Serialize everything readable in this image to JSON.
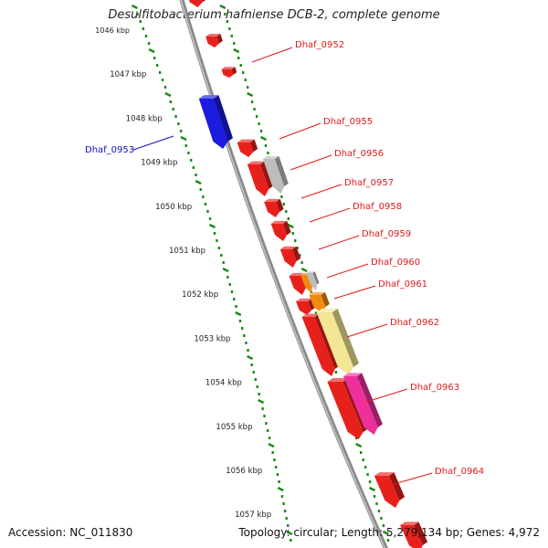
{
  "title": "Desulfitobacterium hafniense DCB-2, complete genome",
  "footer": {
    "accession": "Accession: NC_011830",
    "topology": "Topology: circular; Length: 5,279,134 bp; Genes: 4,972"
  },
  "scale_labels": [
    "1046 kbp",
    "1047 kbp",
    "1048 kbp",
    "1049 kbp",
    "1050 kbp",
    "1051 kbp",
    "1052 kbp",
    "1053 kbp",
    "1054 kbp",
    "1055 kbp",
    "1056 kbp",
    "1057 kbp"
  ],
  "colors": {
    "forward_gene": "#e8201c",
    "reverse_gene": "#1c1ce0",
    "orange_gene": "#f08a10",
    "grey_gene": "#bdbdbd",
    "yellow_gene": "#f3e694",
    "magenta_gene": "#ef2f9c",
    "backbone": "#8a8a8a",
    "scale_ticks": "#1a8a1a",
    "forward_label": "#e01818",
    "reverse_label": "#1010c8"
  },
  "gene_labels": [
    {
      "id": "Dhaf_0952",
      "strand": "forward"
    },
    {
      "id": "Dhaf_0953",
      "strand": "reverse"
    },
    {
      "id": "Dhaf_0955",
      "strand": "forward"
    },
    {
      "id": "Dhaf_0956",
      "strand": "forward"
    },
    {
      "id": "Dhaf_0957",
      "strand": "forward"
    },
    {
      "id": "Dhaf_0958",
      "strand": "forward"
    },
    {
      "id": "Dhaf_0959",
      "strand": "forward"
    },
    {
      "id": "Dhaf_0960",
      "strand": "forward"
    },
    {
      "id": "Dhaf_0961",
      "strand": "forward"
    },
    {
      "id": "Dhaf_0962",
      "strand": "forward"
    },
    {
      "id": "Dhaf_0963",
      "strand": "forward"
    },
    {
      "id": "Dhaf_0964",
      "strand": "forward"
    }
  ]
}
